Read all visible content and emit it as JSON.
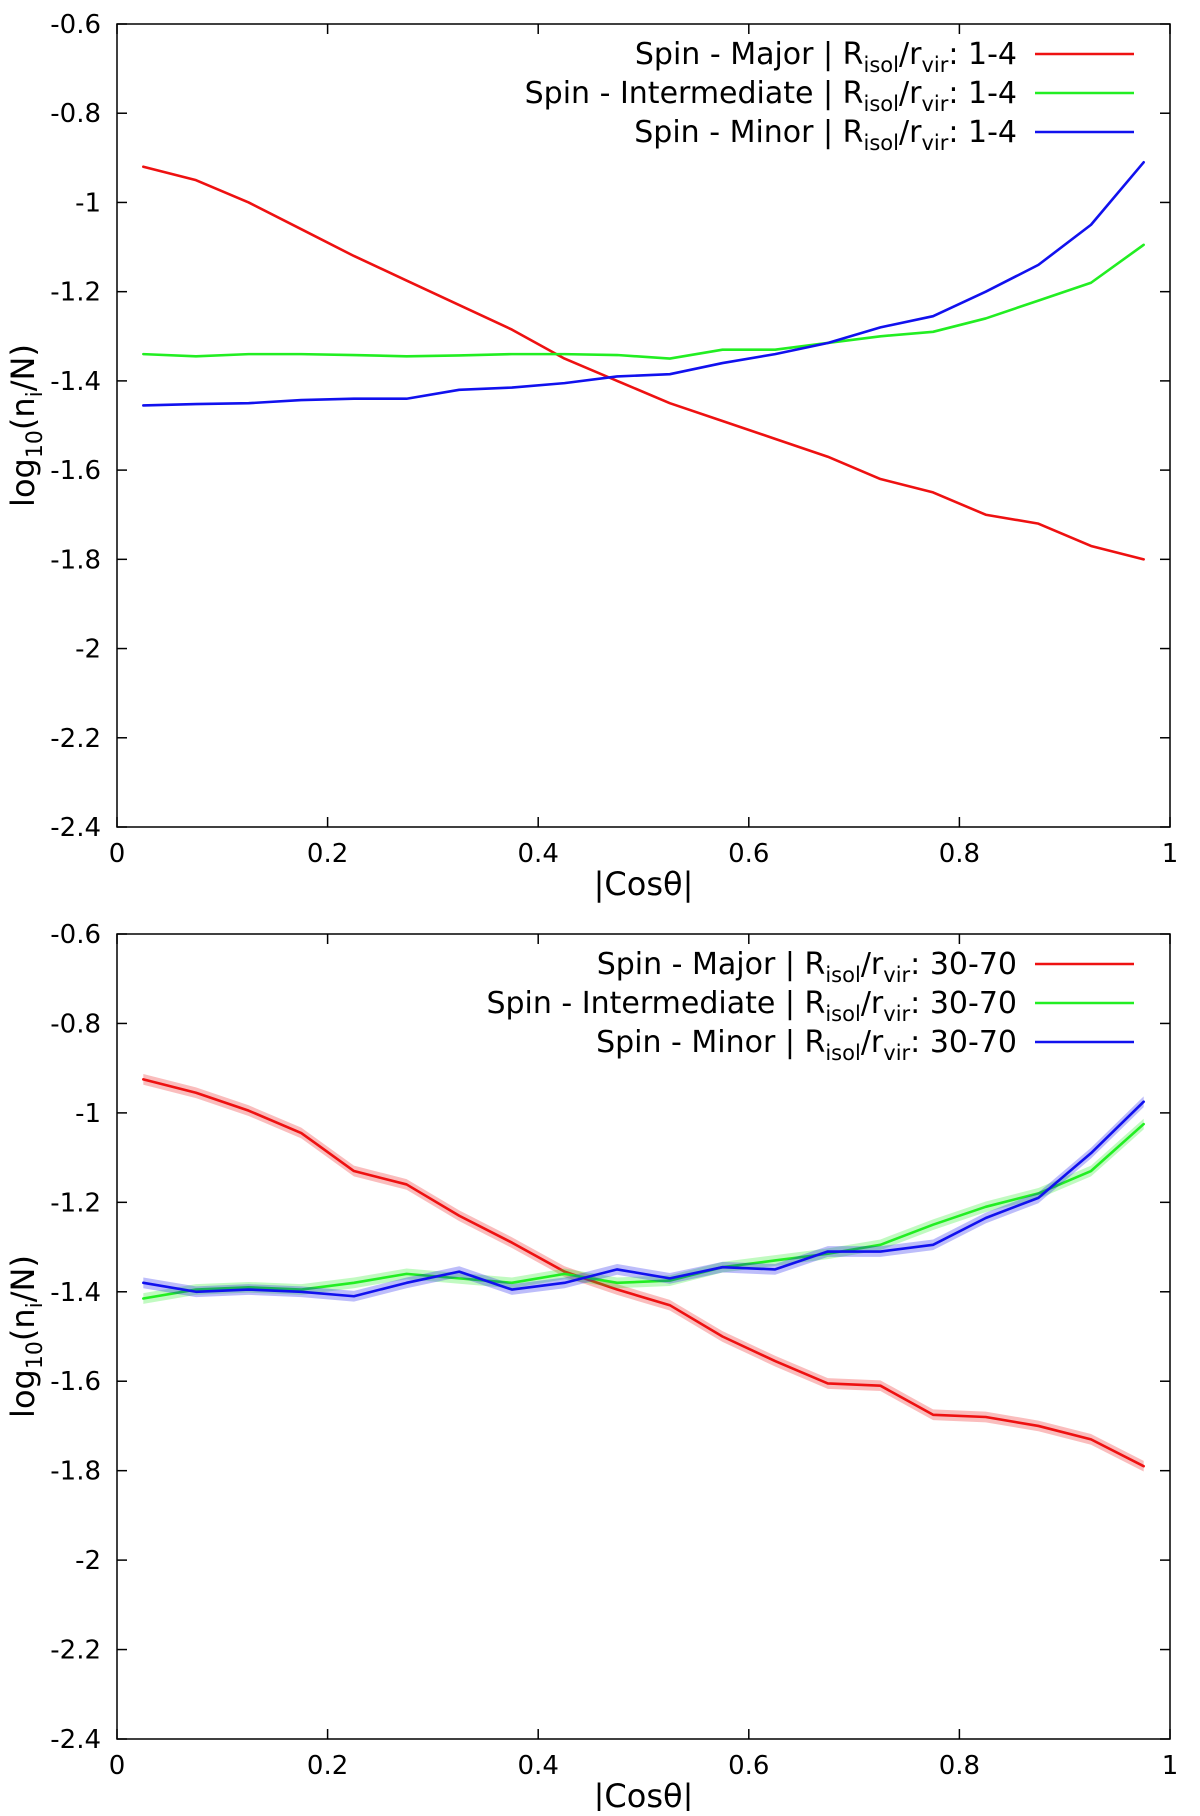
{
  "chart_data": [
    {
      "type": "line",
      "title": "",
      "xlabel": "|Cosθ|",
      "ylabel": "log10(ni/N)",
      "xlim": [
        0,
        1
      ],
      "ylim": [
        -2.4,
        -0.6
      ],
      "xticks": [
        0,
        0.2,
        0.4,
        0.6,
        0.8,
        1
      ],
      "xtick_labels": [
        "0",
        "0.2",
        "0.4",
        "0.6",
        "0.8",
        "1"
      ],
      "yticks": [
        -2.4,
        -2.2,
        -2,
        -1.8,
        -1.6,
        -1.4,
        -1.2,
        -1,
        -0.8,
        -0.6
      ],
      "ytick_labels": [
        "-2.4",
        "-2.2",
        "-2",
        "-1.8",
        "-1.6",
        "-1.4",
        "-1.2",
        "-1",
        "-0.8",
        "-0.6"
      ],
      "legend_position": "top-right",
      "x": [
        0.025,
        0.075,
        0.125,
        0.175,
        0.225,
        0.275,
        0.325,
        0.375,
        0.425,
        0.475,
        0.525,
        0.575,
        0.625,
        0.675,
        0.725,
        0.775,
        0.825,
        0.875,
        0.925,
        0.975
      ],
      "series": [
        {
          "name": "Spin - Major | Risol/rvir: 1-4",
          "legend": {
            "prefix": "Spin - Major | R",
            "sub1": "isol",
            "mid": "/r",
            "sub2": "vir",
            "suffix": ": 1-4"
          },
          "color": "#ee1111",
          "band": 0.0,
          "values": [
            -0.92,
            -0.95,
            -1.0,
            -1.06,
            -1.12,
            -1.175,
            -1.23,
            -1.285,
            -1.35,
            -1.4,
            -1.45,
            -1.49,
            -1.53,
            -1.57,
            -1.62,
            -1.65,
            -1.7,
            -1.72,
            -1.77,
            -1.8
          ]
        },
        {
          "name": "Spin - Intermediate | Risol/rvir: 1-4",
          "legend": {
            "prefix": "Spin - Intermediate | R",
            "sub1": "isol",
            "mid": "/r",
            "sub2": "vir",
            "suffix": ": 1-4"
          },
          "color": "#22ee22",
          "band": 0.0,
          "values": [
            -1.34,
            -1.345,
            -1.34,
            -1.34,
            -1.342,
            -1.345,
            -1.343,
            -1.34,
            -1.34,
            -1.342,
            -1.35,
            -1.33,
            -1.33,
            -1.315,
            -1.3,
            -1.29,
            -1.26,
            -1.22,
            -1.18,
            -1.095
          ]
        },
        {
          "name": "Spin - Minor | Risol/rvir: 1-4",
          "legend": {
            "prefix": "Spin - Minor | R",
            "sub1": "isol",
            "mid": "/r",
            "sub2": "vir",
            "suffix": ": 1-4"
          },
          "color": "#1111ee",
          "band": 0.0,
          "values": [
            -1.455,
            -1.452,
            -1.45,
            -1.443,
            -1.44,
            -1.44,
            -1.42,
            -1.415,
            -1.405,
            -1.39,
            -1.385,
            -1.36,
            -1.34,
            -1.315,
            -1.28,
            -1.255,
            -1.2,
            -1.14,
            -1.05,
            -0.91
          ]
        }
      ]
    },
    {
      "type": "line",
      "title": "",
      "xlabel": "|Cosθ|",
      "ylabel": "log10(ni/N)",
      "xlim": [
        0,
        1
      ],
      "ylim": [
        -2.4,
        -0.6
      ],
      "xticks": [
        0,
        0.2,
        0.4,
        0.6,
        0.8,
        1
      ],
      "xtick_labels": [
        "0",
        "0.2",
        "0.4",
        "0.6",
        "0.8",
        "1"
      ],
      "yticks": [
        -2.4,
        -2.2,
        -2,
        -1.8,
        -1.6,
        -1.4,
        -1.2,
        -1,
        -0.8,
        -0.6
      ],
      "ytick_labels": [
        "-2.4",
        "-2.2",
        "-2",
        "-1.8",
        "-1.6",
        "-1.4",
        "-1.2",
        "-1",
        "-0.8",
        "-0.6"
      ],
      "legend_position": "top-right",
      "x": [
        0.025,
        0.075,
        0.125,
        0.175,
        0.225,
        0.275,
        0.325,
        0.375,
        0.425,
        0.475,
        0.525,
        0.575,
        0.625,
        0.675,
        0.725,
        0.775,
        0.825,
        0.875,
        0.925,
        0.975
      ],
      "series": [
        {
          "name": "Spin - Major | Risol/rvir: 30-70",
          "legend": {
            "prefix": "Spin - Major | R",
            "sub1": "isol",
            "mid": "/r",
            "sub2": "vir",
            "suffix": ": 30-70"
          },
          "color": "#ee1111",
          "band": 0.012,
          "values": [
            -0.925,
            -0.955,
            -0.995,
            -1.045,
            -1.13,
            -1.16,
            -1.23,
            -1.29,
            -1.355,
            -1.395,
            -1.43,
            -1.5,
            -1.555,
            -1.605,
            -1.61,
            -1.675,
            -1.68,
            -1.7,
            -1.73,
            -1.79
          ]
        },
        {
          "name": "Spin - Intermediate | Risol/rvir: 30-70",
          "legend": {
            "prefix": "Spin - Intermediate | R",
            "sub1": "isol",
            "mid": "/r",
            "sub2": "vir",
            "suffix": ": 30-70"
          },
          "color": "#22ee22",
          "band": 0.012,
          "values": [
            -1.415,
            -1.395,
            -1.39,
            -1.395,
            -1.38,
            -1.36,
            -1.37,
            -1.38,
            -1.36,
            -1.38,
            -1.375,
            -1.345,
            -1.33,
            -1.315,
            -1.295,
            -1.25,
            -1.21,
            -1.18,
            -1.13,
            -1.025
          ]
        },
        {
          "name": "Spin - Minor | Risol/rvir: 30-70",
          "legend": {
            "prefix": "Spin - Minor | R",
            "sub1": "isol",
            "mid": "/r",
            "sub2": "vir",
            "suffix": ": 30-70"
          },
          "color": "#1111ee",
          "band": 0.012,
          "values": [
            -1.38,
            -1.4,
            -1.395,
            -1.4,
            -1.41,
            -1.38,
            -1.355,
            -1.395,
            -1.38,
            -1.35,
            -1.37,
            -1.345,
            -1.35,
            -1.31,
            -1.31,
            -1.295,
            -1.235,
            -1.19,
            -1.09,
            -0.975
          ]
        }
      ]
    }
  ]
}
